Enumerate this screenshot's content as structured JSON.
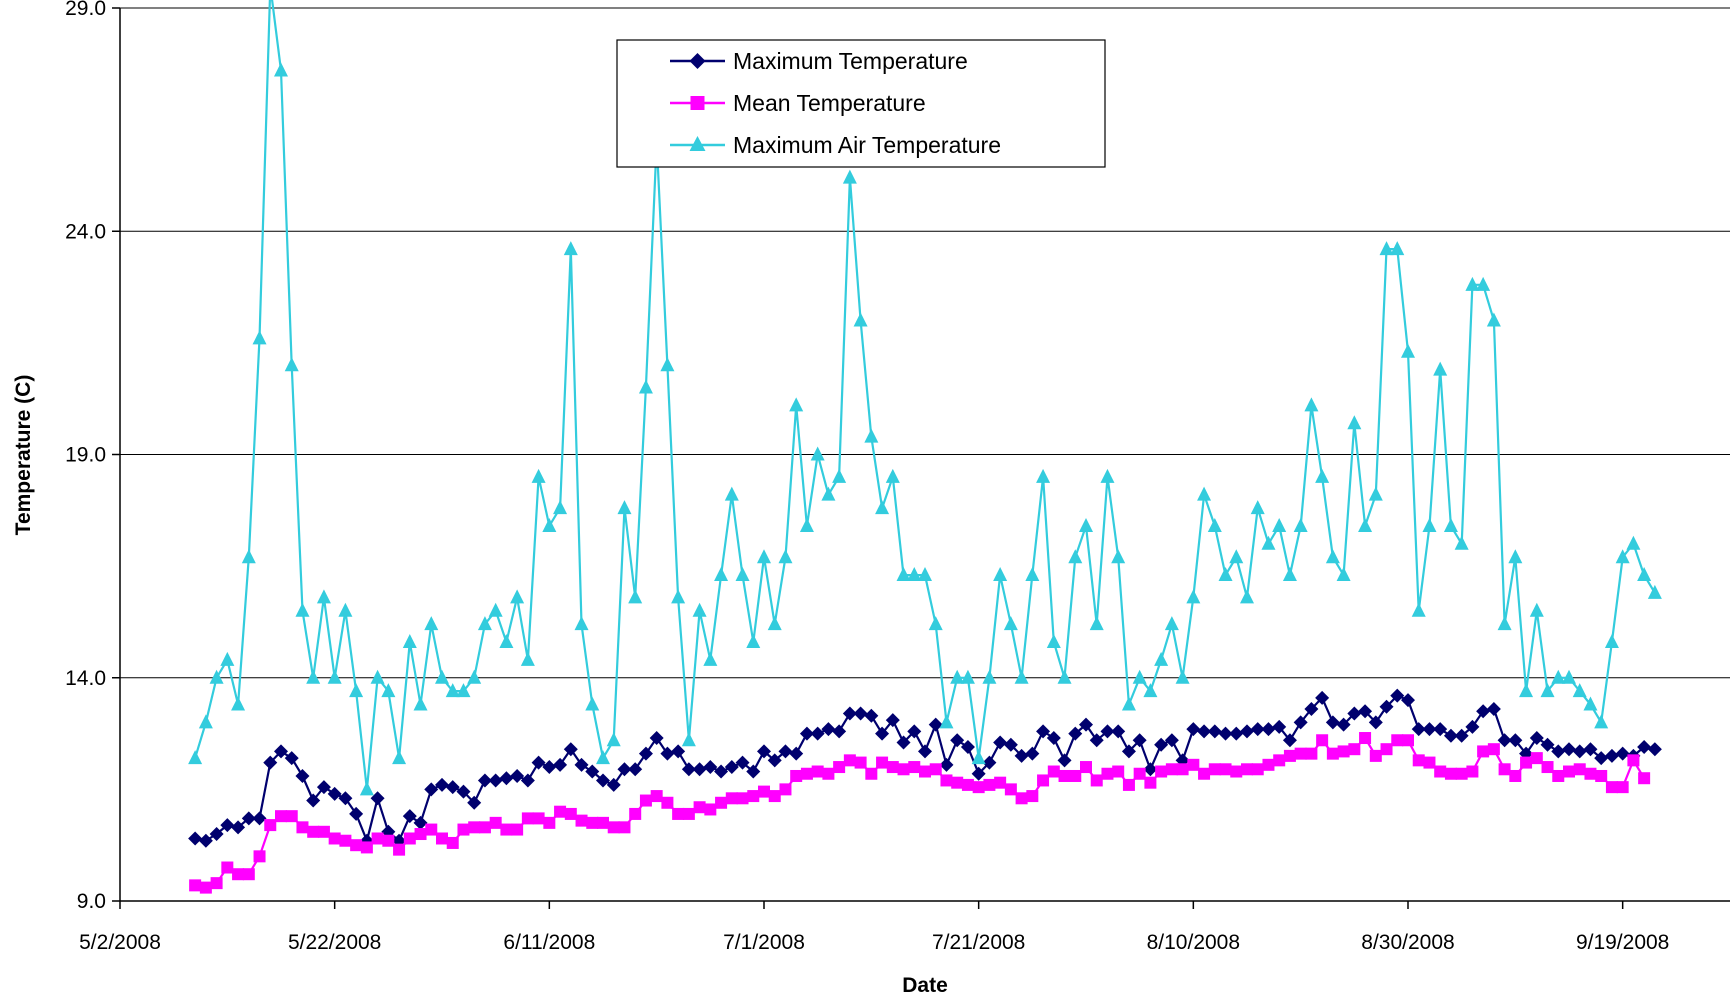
{
  "chart_data": {
    "type": "line",
    "title": "",
    "xlabel": "Date",
    "ylabel": "Temperature (C)",
    "ylim": [
      9.0,
      29.0
    ],
    "xlim": [
      "2008-05-02",
      "2008-09-29"
    ],
    "x_ticks": [
      "5/2/2008",
      "5/22/2008",
      "6/11/2008",
      "7/1/2008",
      "7/21/2008",
      "8/10/2008",
      "8/30/2008",
      "9/19/2008"
    ],
    "y_ticks": [
      "9.0",
      "14.0",
      "19.0",
      "24.0",
      "29.0"
    ],
    "grid": "horizontal",
    "legend_position": "top-center",
    "x_start": "2008-05-09",
    "series": [
      {
        "name": "Maximum Temperature",
        "color": "#00006e",
        "marker": "diamond",
        "values": [
          10.4,
          10.35,
          10.5,
          10.7,
          10.65,
          10.85,
          10.85,
          12.1,
          12.35,
          12.2,
          11.8,
          11.25,
          11.55,
          11.4,
          11.3,
          10.95,
          10.35,
          11.3,
          10.55,
          10.35,
          10.9,
          10.75,
          11.5,
          11.6,
          11.55,
          11.45,
          11.2,
          11.7,
          11.7,
          11.75,
          11.8,
          11.7,
          12.1,
          12.0,
          12.05,
          12.4,
          12.05,
          11.9,
          11.7,
          11.6,
          11.95,
          11.95,
          12.3,
          12.65,
          12.3,
          12.35,
          11.95,
          11.95,
          12.0,
          11.9,
          12.0,
          12.1,
          11.9,
          12.35,
          12.15,
          12.35,
          12.3,
          12.75,
          12.75,
          12.85,
          12.8,
          13.2,
          13.2,
          13.15,
          12.75,
          13.05,
          12.55,
          12.8,
          12.35,
          12.95,
          12.05,
          12.6,
          12.45,
          11.85,
          12.1,
          12.55,
          12.5,
          12.25,
          12.3,
          12.8,
          12.65,
          12.15,
          12.75,
          12.95,
          12.6,
          12.8,
          12.8,
          12.35,
          12.6,
          11.95,
          12.5,
          12.6,
          12.15,
          12.85,
          12.8,
          12.8,
          12.75,
          12.75,
          12.8,
          12.85,
          12.85,
          12.9,
          12.6,
          13.0,
          13.3,
          13.55,
          13.0,
          12.95,
          13.2,
          13.25,
          13.0,
          13.35,
          13.6,
          13.5,
          12.85,
          12.85,
          12.85,
          12.7,
          12.7,
          12.9,
          13.25,
          13.3,
          12.6,
          12.6,
          12.3,
          12.65,
          12.5,
          12.35,
          12.4,
          12.35,
          12.4,
          12.2,
          12.25,
          12.3,
          12.25,
          12.45,
          12.4
        ]
      },
      {
        "name": "Mean Temperature",
        "color": "#ff00ff",
        "marker": "square",
        "values": [
          9.35,
          9.3,
          9.4,
          9.75,
          9.6,
          9.6,
          10.0,
          10.7,
          10.9,
          10.9,
          10.65,
          10.55,
          10.55,
          10.4,
          10.35,
          10.25,
          10.2,
          10.4,
          10.35,
          10.15,
          10.4,
          10.5,
          10.6,
          10.4,
          10.3,
          10.6,
          10.65,
          10.65,
          10.75,
          10.6,
          10.6,
          10.85,
          10.85,
          10.75,
          11.0,
          10.95,
          10.8,
          10.75,
          10.75,
          10.65,
          10.65,
          10.95,
          11.25,
          11.35,
          11.2,
          10.95,
          10.95,
          11.1,
          11.05,
          11.2,
          11.3,
          11.3,
          11.35,
          11.45,
          11.35,
          11.5,
          11.8,
          11.85,
          11.9,
          11.85,
          12.0,
          12.15,
          12.1,
          11.85,
          12.1,
          12.0,
          11.95,
          12.0,
          11.9,
          11.95,
          11.7,
          11.65,
          11.6,
          11.55,
          11.6,
          11.65,
          11.5,
          11.3,
          11.35,
          11.7,
          11.9,
          11.8,
          11.8,
          12.0,
          11.7,
          11.85,
          11.9,
          11.6,
          11.85,
          11.65,
          11.9,
          11.95,
          11.95,
          12.05,
          11.85,
          11.95,
          11.95,
          11.9,
          11.95,
          11.95,
          12.05,
          12.15,
          12.25,
          12.3,
          12.3,
          12.6,
          12.3,
          12.35,
          12.4,
          12.65,
          12.25,
          12.4,
          12.6,
          12.6,
          12.15,
          12.1,
          11.9,
          11.85,
          11.85,
          11.9,
          12.35,
          12.4,
          11.95,
          11.8,
          12.1,
          12.2,
          12.0,
          11.8,
          11.9,
          11.95,
          11.85,
          11.8,
          11.55,
          11.55,
          12.15,
          11.75
        ]
      },
      {
        "name": "Maximum Air Temperature",
        "color": "#33ccdd",
        "marker": "triangle",
        "values": [
          12.2,
          13.0,
          14.0,
          14.4,
          13.4,
          16.7,
          21.6,
          29.5,
          27.6,
          21.0,
          15.5,
          14.0,
          15.8,
          14.0,
          15.5,
          13.7,
          11.5,
          14.0,
          13.7,
          12.2,
          14.8,
          13.4,
          15.2,
          14.0,
          13.7,
          13.7,
          14.0,
          15.2,
          15.5,
          14.8,
          15.8,
          14.4,
          18.5,
          17.4,
          17.8,
          23.6,
          15.2,
          13.4,
          12.2,
          12.6,
          17.8,
          15.8,
          20.5,
          26.0,
          21.0,
          15.8,
          12.6,
          15.5,
          14.4,
          16.3,
          18.1,
          16.3,
          14.8,
          16.7,
          15.2,
          16.7,
          20.1,
          17.4,
          19.0,
          18.1,
          18.5,
          25.2,
          22.0,
          19.4,
          17.8,
          18.5,
          16.3,
          16.3,
          16.3,
          15.2,
          13.0,
          14.0,
          14.0,
          12.2,
          14.0,
          16.3,
          15.2,
          14.0,
          16.3,
          18.5,
          14.8,
          14.0,
          16.7,
          17.4,
          15.2,
          18.5,
          16.7,
          13.4,
          14.0,
          13.7,
          14.4,
          15.2,
          14.0,
          15.8,
          18.1,
          17.4,
          16.3,
          16.7,
          15.8,
          17.8,
          17.0,
          17.4,
          16.3,
          17.4,
          20.1,
          18.5,
          16.7,
          16.3,
          19.7,
          17.4,
          18.1,
          23.6,
          23.6,
          21.3,
          15.5,
          17.4,
          20.9,
          17.4,
          17.0,
          22.8,
          22.8,
          22.0,
          15.2,
          16.7,
          13.7,
          15.5,
          13.7,
          14.0,
          14.0,
          13.7,
          13.4,
          13.0,
          14.8,
          16.7,
          17.0,
          16.3,
          15.9
        ]
      }
    ]
  }
}
